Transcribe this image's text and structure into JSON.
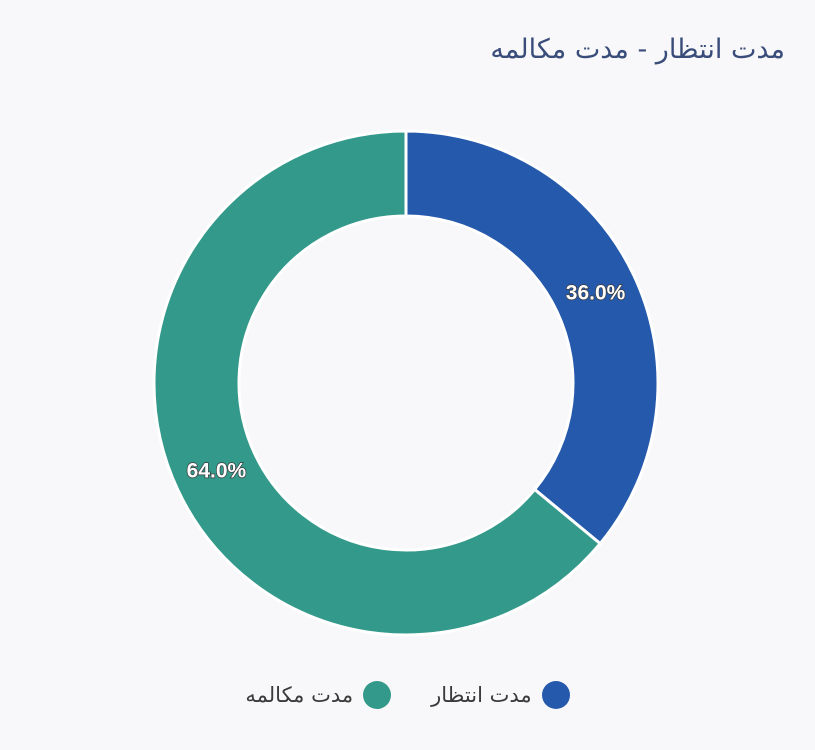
{
  "chart_data": {
    "type": "pie",
    "variant": "donut",
    "title": "مدت انتظار - مدت مکالمه",
    "categories": [
      "مدت انتظار",
      "مدت مکالمه"
    ],
    "values": [
      36.0,
      64.0
    ],
    "labels": [
      "36.0%",
      "64.0%"
    ],
    "colors": [
      "#2559ac",
      "#33998a"
    ],
    "legend_position": "bottom"
  },
  "legend": {
    "items": [
      {
        "label": "مدت انتظار",
        "color": "#2559ac"
      },
      {
        "label": "مدت مکالمه",
        "color": "#33998a"
      }
    ]
  }
}
